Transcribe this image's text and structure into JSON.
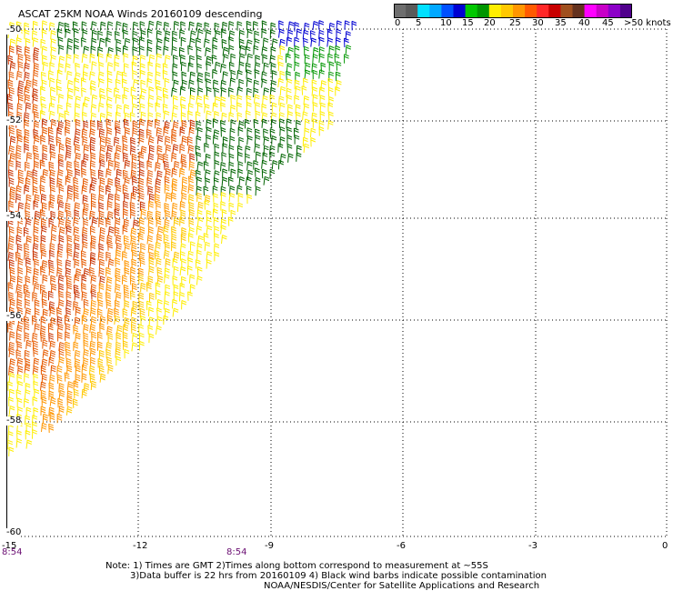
{
  "title": "ASCAT 25KM NOAA Winds 20160109 descending",
  "colorbar": {
    "colors": [
      "#6e6e6e",
      "#5a5a5a",
      "#00e0ff",
      "#00a8ff",
      "#0050ff",
      "#0000d2",
      "#00c800",
      "#009600",
      "#ffee00",
      "#ffc800",
      "#ff9600",
      "#ff5a00",
      "#ff2828",
      "#c80000",
      "#a0501e",
      "#64321e",
      "#ff00ff",
      "#c800c8",
      "#8c00c8",
      "#50008c"
    ],
    "labels": [
      "0",
      "5",
      "10",
      "15",
      "20",
      "25",
      "30",
      "35",
      "40",
      "45",
      ">50 knots"
    ]
  },
  "lat_labels": [
    "-50",
    "-52",
    "-54",
    "-56",
    "-58",
    "-60"
  ],
  "lon_labels": [
    "-15",
    "-12",
    "-9",
    "-6",
    "-3",
    "0"
  ],
  "time_labels": [
    "8:54",
    "8:54"
  ],
  "notes": [
    "Note: 1) Times are GMT 2)Times along bottom correspond to measurement at ~55S",
    "3)Data buffer is 22 hrs from 20160109 4) Black wind barbs indicate possible contamination",
    "NOAA/NESDIS/Center for Satellite Applications and Research"
  ],
  "wind_colors": {
    "light_blue": "#00a0ff",
    "blue": "#0000d2",
    "green": "#009600",
    "dark_green": "#006400",
    "yellow": "#ffee00",
    "gold": "#ffc800",
    "orange": "#ff9600",
    "red_orange": "#e65a00",
    "red": "#c83200"
  }
}
